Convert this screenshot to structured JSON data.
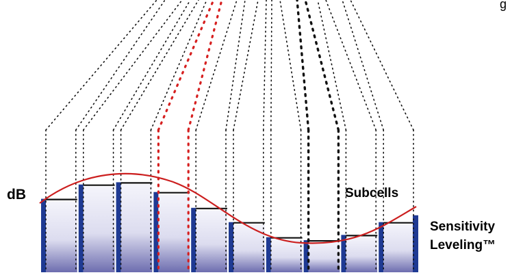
{
  "labels": {
    "db": "dB",
    "subcells": "Subcells",
    "sensitivity_line1": "Sensitivity",
    "sensitivity_line2": "Leveling™",
    "partial_top_right": "g"
  },
  "colors": {
    "cell_dark": "#1f3a93",
    "cell_gradient_top": "#f2f2fa",
    "cell_gradient_bottom": "#6f6fb0",
    "curve": "#cc1f1f",
    "level_line": "#111111",
    "highlight_dots": "#d62020",
    "dots": "#111111"
  },
  "diagram": {
    "cell_count": 10,
    "cell_levels_relative": [
      0.74,
      0.93,
      0.96,
      0.83,
      0.62,
      0.43,
      0.23,
      0.19,
      0.26,
      0.43
    ],
    "highlighted_cells_red": [
      3
    ],
    "highlighted_cells_bold": [
      7
    ]
  }
}
